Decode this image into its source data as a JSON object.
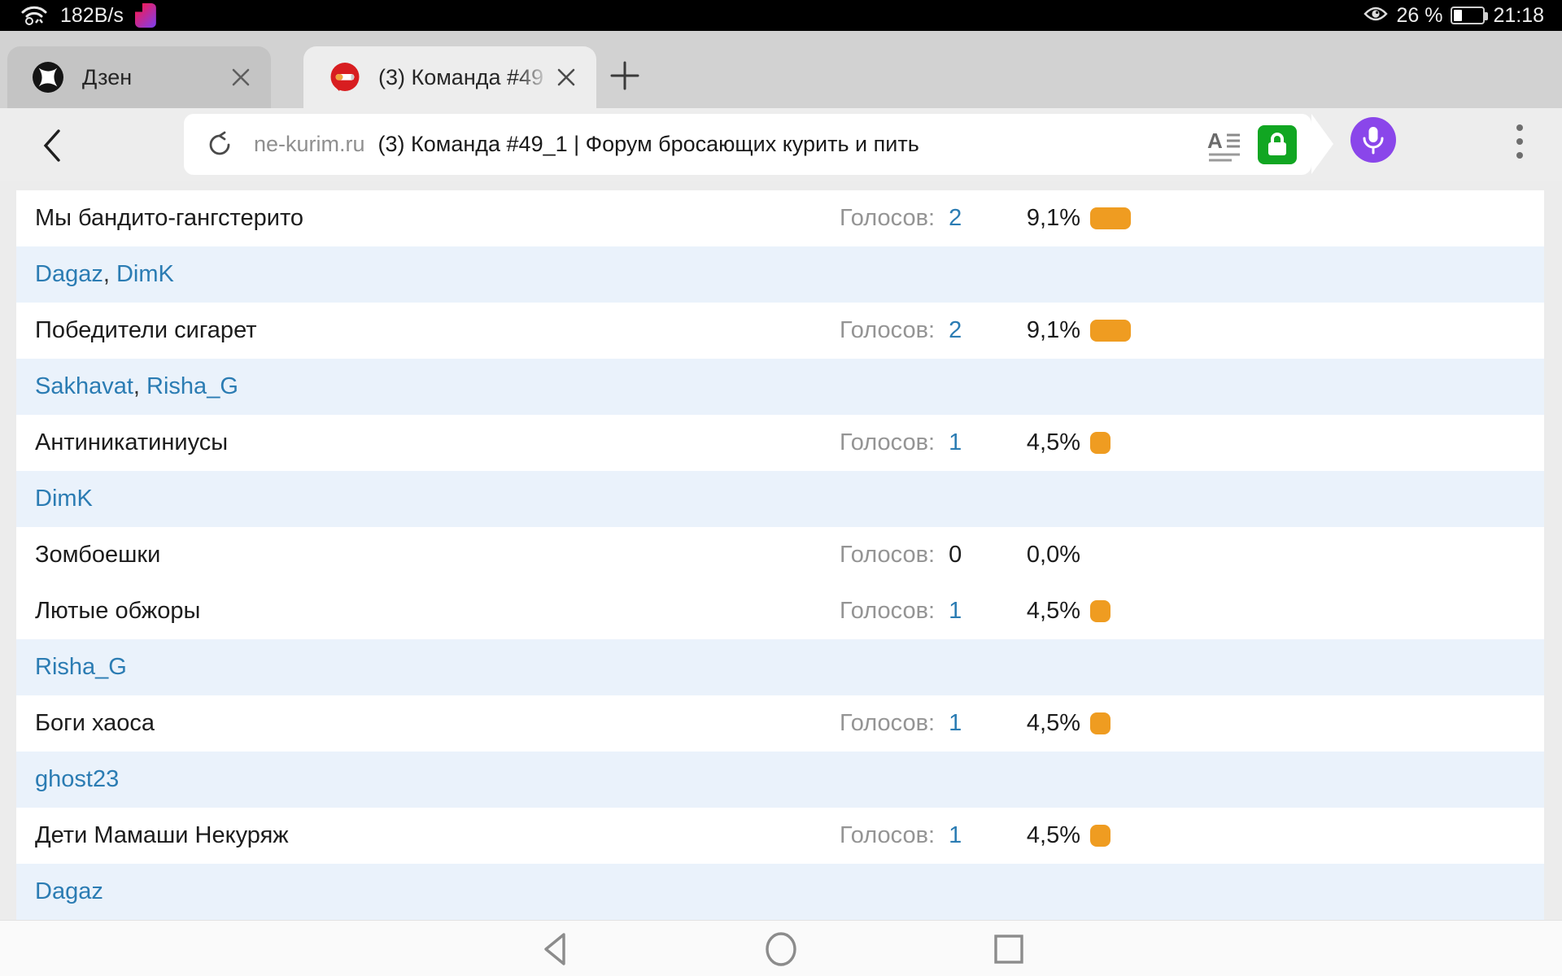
{
  "status_bar": {
    "network_speed": "182B/s",
    "battery_percent": "26 %",
    "time": "21:18"
  },
  "tabs": [
    {
      "title": "Дзен",
      "active": false
    },
    {
      "title": "(3) Команда #49",
      "active": true
    }
  ],
  "url_bar": {
    "domain": "ne-kurim.ru",
    "page_title": "(3) Команда #49_1 | Форум бросающих курить и пить"
  },
  "poll": {
    "votes_label": "Голосов:",
    "rows": [
      {
        "type": "team",
        "name": "Мы бандито-гангстерито",
        "votes": "2",
        "percent": "9,1%",
        "percent_value": 9.1
      },
      {
        "type": "voters",
        "names": [
          "Dagaz",
          "DimK"
        ]
      },
      {
        "type": "team",
        "name": "Победители сигарет",
        "votes": "2",
        "percent": "9,1%",
        "percent_value": 9.1
      },
      {
        "type": "voters",
        "names": [
          "Sakhavat",
          "Risha_G"
        ]
      },
      {
        "type": "team",
        "name": "Антиникатиниусы",
        "votes": "1",
        "percent": "4,5%",
        "percent_value": 4.5
      },
      {
        "type": "voters",
        "names": [
          "DimK"
        ]
      },
      {
        "type": "team",
        "name": "Зомбоешки",
        "votes": "0",
        "percent": "0,0%",
        "percent_value": 0
      },
      {
        "type": "team",
        "name": "Лютые обжоры",
        "votes": "1",
        "percent": "4,5%",
        "percent_value": 4.5
      },
      {
        "type": "voters",
        "names": [
          "Risha_G"
        ]
      },
      {
        "type": "team",
        "name": "Боги хаоса",
        "votes": "1",
        "percent": "4,5%",
        "percent_value": 4.5
      },
      {
        "type": "voters",
        "names": [
          "ghost23"
        ]
      },
      {
        "type": "team",
        "name": "Дети Мамаши Некуряж",
        "votes": "1",
        "percent": "4,5%",
        "percent_value": 4.5
      },
      {
        "type": "voters",
        "names": [
          "Dagaz"
        ]
      }
    ]
  },
  "colors": {
    "link_blue": "#2b7cb3",
    "bar_orange": "#ef9c21",
    "voter_row_bg": "#eaf2fb",
    "lock_green": "#11a622",
    "mic_purple": "#8a46ea",
    "tab_active_bg": "#ededed",
    "tab_inactive_bg": "#c4c4c4"
  }
}
